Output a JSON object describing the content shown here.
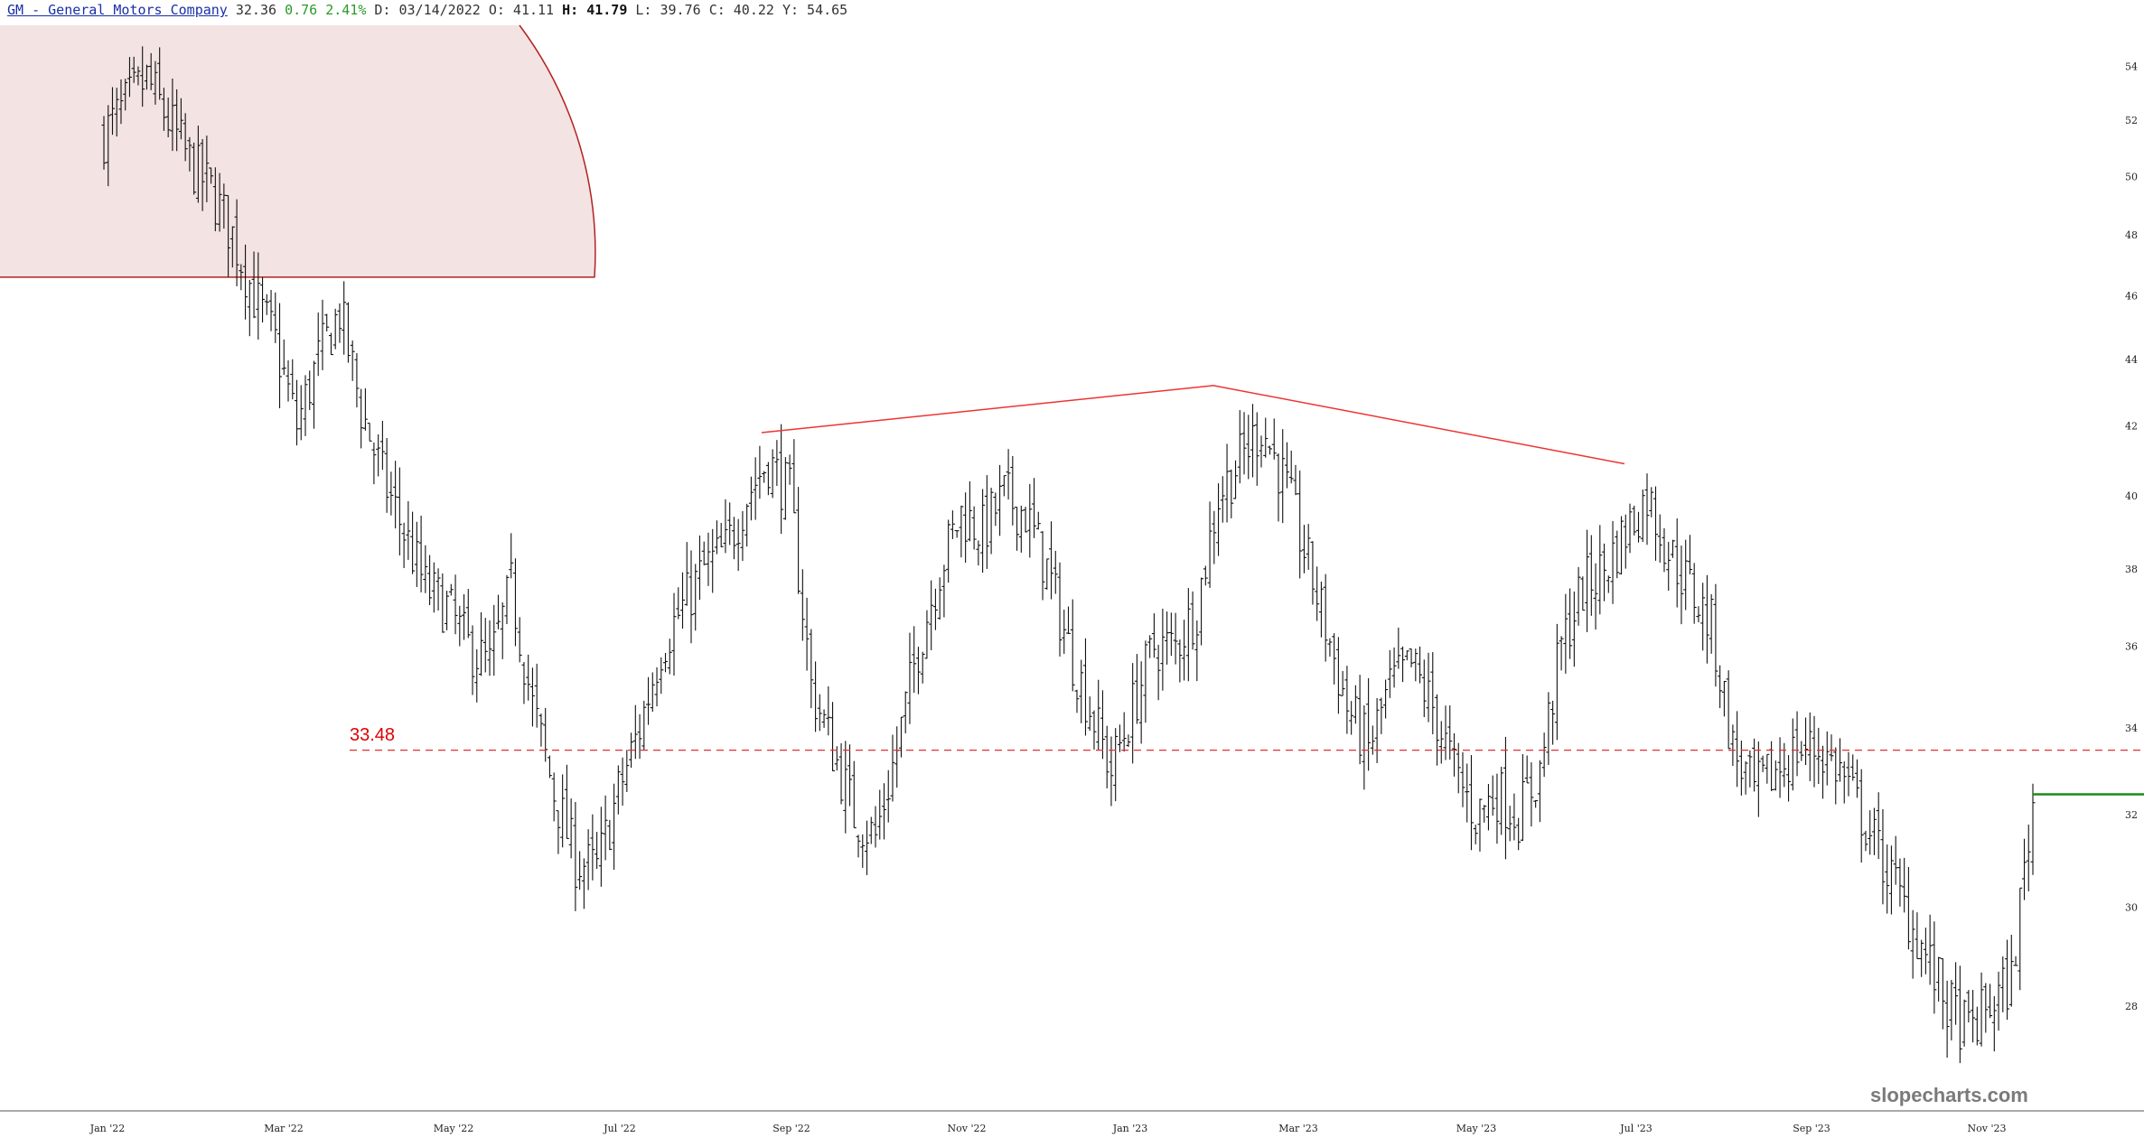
{
  "header": {
    "symbol_link": "GM - General Motors Company",
    "last": "32.36",
    "change": "0.76",
    "change_pct": "2.41%",
    "date_label": "D: 03/14/2022",
    "open_label": "O: 41.11",
    "high_key": "H:",
    "high_value": "41.79",
    "low_label": "L: 39.76",
    "close_label": "C: 40.22",
    "y_label": "Y: 54.65"
  },
  "watermark": "slopecharts.com",
  "colors": {
    "bars": "#111111",
    "zone_fill": "#f3e3e3",
    "zone_stroke": "#b22222",
    "pattern_line": "#ee3333",
    "support_line": "#e03030",
    "current_price_line": "#1a8a1a",
    "axis_text": "#222222"
  },
  "chart_data": {
    "type": "ohlc",
    "ticker": "GM",
    "x_tick_labels": [
      "Jan '22",
      "Mar '22",
      "May '22",
      "Jul '22",
      "Sep '22",
      "Nov '22",
      "Jan '23",
      "Mar '23",
      "May '23",
      "Jul '23",
      "Sep '23",
      "Nov '23"
    ],
    "y_tick_labels": [
      "54",
      "52",
      "50",
      "48",
      "46",
      "44",
      "42",
      "40",
      "38",
      "36",
      "34",
      "32",
      "30",
      "28"
    ],
    "y_scale": "log",
    "ylim": [
      26.6,
      55.5
    ],
    "grid": false,
    "weekly_closes": [
      [
        "Jan '22",
        51.5
      ],
      [
        "Jan '22",
        52.5
      ],
      [
        "Jan '22",
        53.5
      ],
      [
        "Jan '22",
        52.0
      ],
      [
        "Feb '22",
        50.5
      ],
      [
        "Feb '22",
        49.5
      ],
      [
        "Feb '22",
        48.0
      ],
      [
        "Feb '22",
        46.0
      ],
      [
        "Mar '22",
        44.5
      ],
      [
        "Mar '22",
        42.0
      ],
      [
        "Mar '22",
        44.0
      ],
      [
        "Mar '22",
        45.5
      ],
      [
        "Apr '22",
        42.5
      ],
      [
        "Apr '22",
        40.5
      ],
      [
        "Apr '22",
        39.0
      ],
      [
        "Apr '22",
        37.5
      ],
      [
        "May '22",
        37.0
      ],
      [
        "May '22",
        36.0
      ],
      [
        "May '22",
        35.5
      ],
      [
        "May '22",
        37.5
      ],
      [
        "Jun '22",
        34.5
      ],
      [
        "Jun '22",
        32.5
      ],
      [
        "Jun '22",
        31.0
      ],
      [
        "Jun '22",
        30.8
      ],
      [
        "Jul '22",
        32.5
      ],
      [
        "Jul '22",
        34.0
      ],
      [
        "Jul '22",
        36.0
      ],
      [
        "Jul '22",
        37.0
      ],
      [
        "Aug '22",
        38.0
      ],
      [
        "Aug '22",
        38.5
      ],
      [
        "Aug '22",
        40.0
      ],
      [
        "Aug '22",
        41.0
      ],
      [
        "Sep '22",
        40.0
      ],
      [
        "Sep '22",
        35.0
      ],
      [
        "Sep '22",
        33.5
      ],
      [
        "Sep '22",
        32.0
      ],
      [
        "Oct '22",
        31.5
      ],
      [
        "Oct '22",
        33.5
      ],
      [
        "Oct '22",
        36.0
      ],
      [
        "Oct '22",
        38.0
      ],
      [
        "Nov '22",
        39.5
      ],
      [
        "Nov '22",
        39.0
      ],
      [
        "Nov '22",
        40.0
      ],
      [
        "Nov '22",
        39.5
      ],
      [
        "Dec '22",
        38.0
      ],
      [
        "Dec '22",
        36.0
      ],
      [
        "Dec '22",
        34.5
      ],
      [
        "Dec '22",
        33.0
      ],
      [
        "Jan '23",
        34.5
      ],
      [
        "Jan '23",
        36.0
      ],
      [
        "Jan '23",
        36.0
      ],
      [
        "Jan '23",
        37.0
      ],
      [
        "Feb '23",
        40.0
      ],
      [
        "Feb '23",
        41.0
      ],
      [
        "Feb '23",
        42.0
      ],
      [
        "Feb '23",
        40.5
      ],
      [
        "Mar '23",
        38.5
      ],
      [
        "Mar '23",
        36.5
      ],
      [
        "Mar '23",
        34.5
      ],
      [
        "Mar '23",
        33.5
      ],
      [
        "Apr '23",
        35.0
      ],
      [
        "Apr '23",
        35.5
      ],
      [
        "Apr '23",
        34.5
      ],
      [
        "Apr '23",
        33.0
      ],
      [
        "May '23",
        32.0
      ],
      [
        "May '23",
        32.5
      ],
      [
        "May '23",
        32.0
      ],
      [
        "May '23",
        33.0
      ],
      [
        "Jun '23",
        36.0
      ],
      [
        "Jun '23",
        37.5
      ],
      [
        "Jun '23",
        38.0
      ],
      [
        "Jun '23",
        39.0
      ],
      [
        "Jul '23",
        40.0
      ],
      [
        "Jul '23",
        38.5
      ],
      [
        "Jul '23",
        37.5
      ],
      [
        "Jul '23",
        36.5
      ],
      [
        "Aug '23",
        33.5
      ],
      [
        "Aug '23",
        32.5
      ],
      [
        "Aug '23",
        33.0
      ],
      [
        "Aug '23",
        33.5
      ],
      [
        "Sep '23",
        33.5
      ],
      [
        "Sep '23",
        33.0
      ],
      [
        "Sep '23",
        32.0
      ],
      [
        "Sep '23",
        31.0
      ],
      [
        "Oct '23",
        30.0
      ],
      [
        "Oct '23",
        29.0
      ],
      [
        "Oct '23",
        28.0
      ],
      [
        "Oct '23",
        27.5
      ],
      [
        "Nov '23",
        28.0
      ],
      [
        "Nov '23",
        28.5
      ],
      [
        "Nov '23",
        32.3
      ]
    ],
    "annotations": {
      "support_level": 33.48,
      "support_label": "33.48",
      "current_price": 32.36,
      "peak_line_values": [
        41.8,
        43.2,
        40.9
      ],
      "shaded_zone_floor": 46.6
    }
  }
}
